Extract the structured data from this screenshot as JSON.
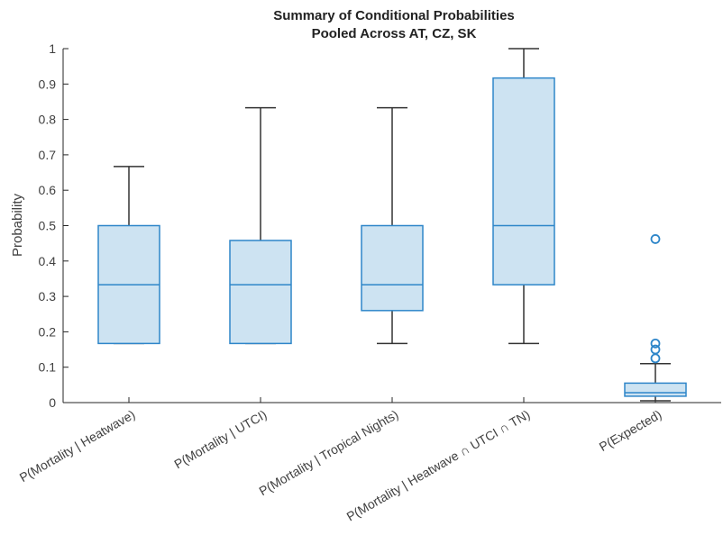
{
  "chart_data": {
    "type": "boxplot",
    "title": [
      "Summary of Conditional Probabilities",
      "Pooled Across AT, CZ, SK"
    ],
    "xlabel": "",
    "ylabel": "Probability",
    "ylim": [
      0,
      1
    ],
    "yticks": [
      0,
      0.1,
      0.2,
      0.3,
      0.4,
      0.5,
      0.6,
      0.7,
      0.8,
      0.9,
      1
    ],
    "yticklabels": [
      "0",
      "0.1",
      "0.2",
      "0.3",
      "0.4",
      "0.5",
      "0.6",
      "0.7",
      "0.8",
      "0.9",
      "1"
    ],
    "categories": [
      "P(Mortality | Heatwave)",
      "P(Mortality | UTCI)",
      "P(Mortality | Tropical Nights)",
      "P(Mortality | Heatwave ∩ UTCI ∩ TN)",
      "P(Expected)"
    ],
    "boxes": [
      {
        "whisker_low": 0.167,
        "q1": 0.167,
        "median": 0.333,
        "q3": 0.5,
        "whisker_high": 0.667,
        "outliers": []
      },
      {
        "whisker_low": 0.167,
        "q1": 0.167,
        "median": 0.333,
        "q3": 0.458,
        "whisker_high": 0.833,
        "outliers": []
      },
      {
        "whisker_low": 0.167,
        "q1": 0.26,
        "median": 0.333,
        "q3": 0.5,
        "whisker_high": 0.833,
        "outliers": []
      },
      {
        "whisker_low": 0.167,
        "q1": 0.333,
        "median": 0.5,
        "q3": 0.917,
        "whisker_high": 1.0,
        "outliers": []
      },
      {
        "whisker_low": 0.005,
        "q1": 0.018,
        "median": 0.028,
        "q3": 0.055,
        "whisker_high": 0.11,
        "outliers": [
          0.125,
          0.15,
          0.167,
          0.462
        ]
      }
    ],
    "colors": {
      "box_fill": "#cde3f2",
      "box_edge": "#2e86c9",
      "whisker": "#333333",
      "axis": "#262626",
      "text": "#404040"
    },
    "grid": false,
    "legend": "none"
  }
}
